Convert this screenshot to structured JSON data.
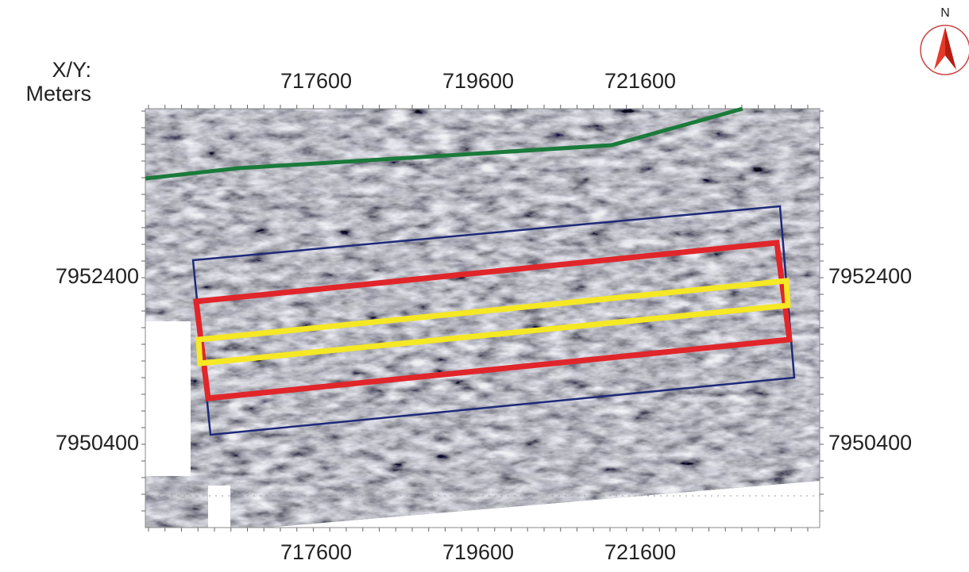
{
  "axis_label": {
    "line1": "X/Y:",
    "line2": "Meters"
  },
  "x_ticks": [
    717600,
    719600,
    721600
  ],
  "y_ticks": [
    7952400,
    7950400
  ],
  "compass": {
    "label": "N"
  }
}
